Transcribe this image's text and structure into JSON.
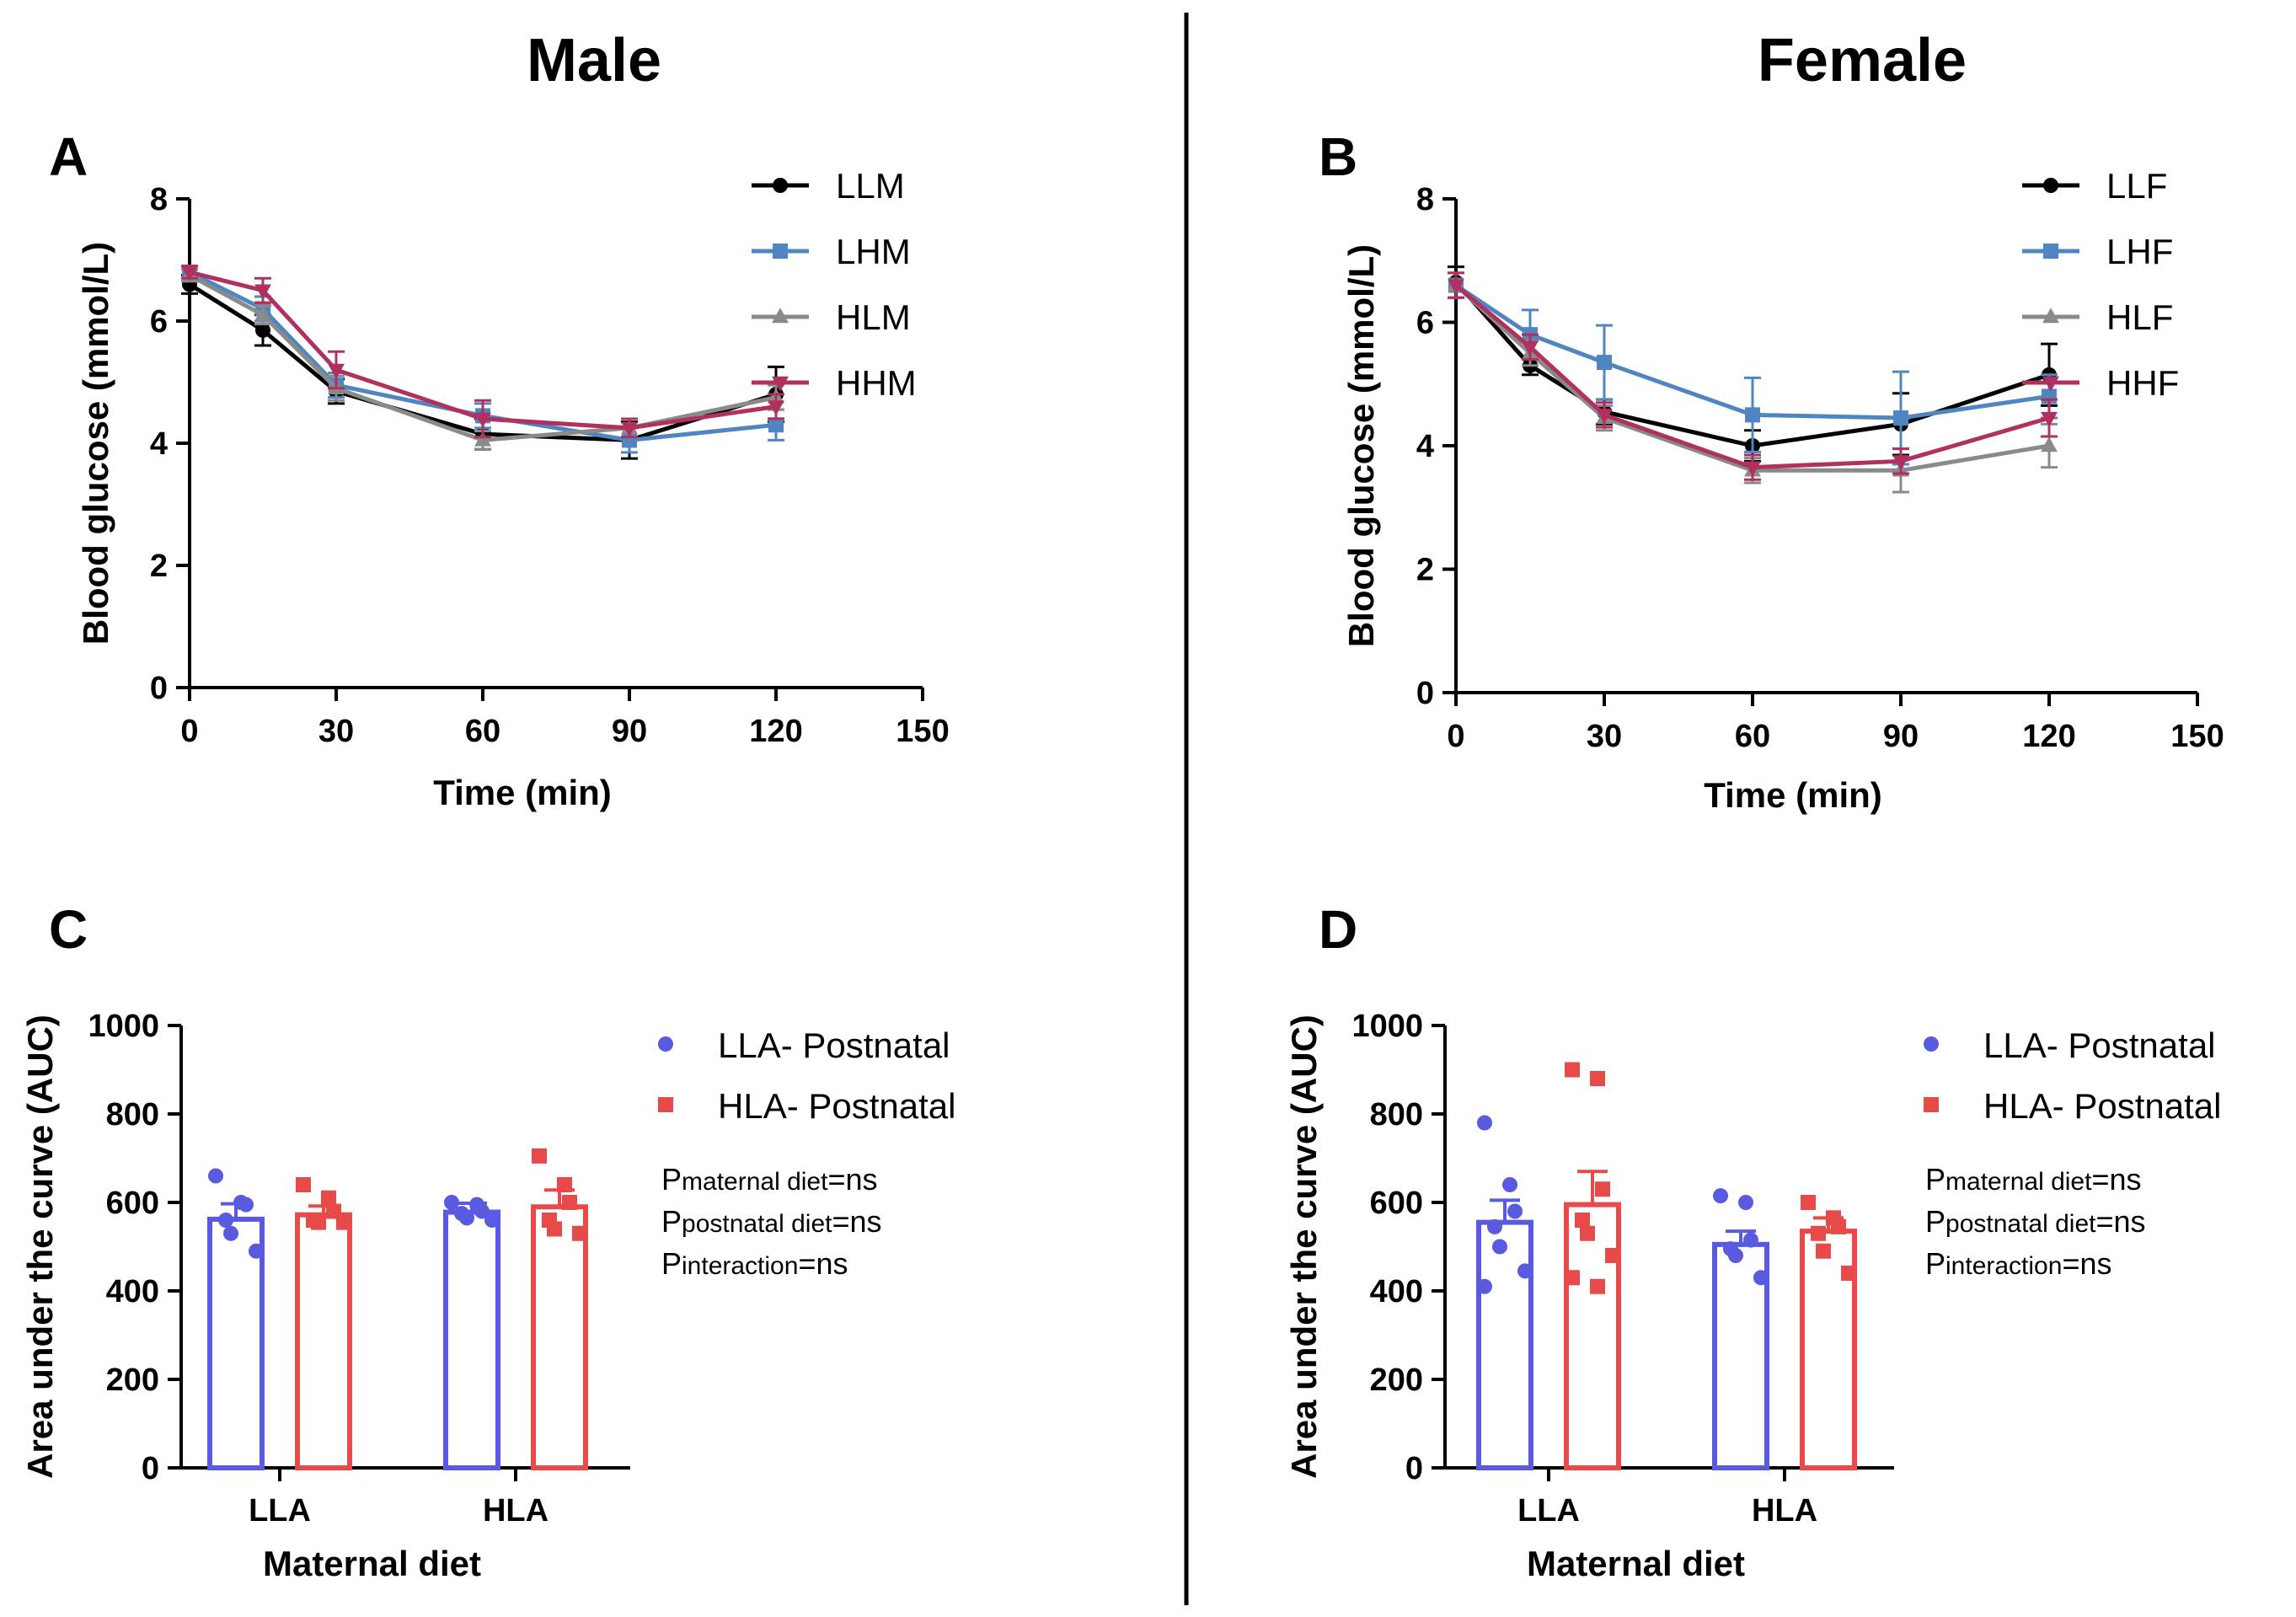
{
  "headers": {
    "male": "Male",
    "female": "Female"
  },
  "panel_labels": {
    "a": "A",
    "b": "B",
    "c": "C",
    "d": "D"
  },
  "colors": {
    "black": "#000000",
    "steel_blue": "#4f86c1",
    "gray": "#8a8a8a",
    "crimson": "#b03060",
    "bar_blue": "#5a5ae0",
    "bar_red": "#e84a4a"
  },
  "chart_data": [
    {
      "id": "A",
      "type": "line",
      "title": "",
      "xlabel": "Time (min)",
      "ylabel": "Blood glucose (mmol/L)",
      "xlim": [
        0,
        150
      ],
      "ylim": [
        0,
        8
      ],
      "xticks": [
        "0",
        "30",
        "60",
        "90",
        "120",
        "150"
      ],
      "yticks": [
        "0",
        "2",
        "4",
        "6",
        "8"
      ],
      "x": [
        0,
        15,
        30,
        60,
        90,
        120
      ],
      "series": [
        {
          "name": "LLM",
          "color": "#000000",
          "marker": "circle",
          "values": [
            6.6,
            5.85,
            4.85,
            4.15,
            4.05,
            4.8
          ],
          "errors": [
            0.15,
            0.25,
            0.2,
            0.25,
            0.3,
            0.45
          ]
        },
        {
          "name": "LHM",
          "color": "#4f86c1",
          "marker": "square",
          "values": [
            6.8,
            6.2,
            4.95,
            4.45,
            4.05,
            4.3
          ],
          "errors": [
            0.1,
            0.2,
            0.2,
            0.2,
            0.2,
            0.25
          ]
        },
        {
          "name": "HLM",
          "color": "#8a8a8a",
          "marker": "triangle-up",
          "values": [
            6.75,
            6.1,
            4.9,
            4.05,
            4.25,
            4.75
          ],
          "errors": [
            0.1,
            0.15,
            0.2,
            0.15,
            0.15,
            0.2
          ]
        },
        {
          "name": "HHM",
          "color": "#b03060",
          "marker": "triangle-down",
          "values": [
            6.8,
            6.5,
            5.2,
            4.4,
            4.25,
            4.6
          ],
          "errors": [
            0.1,
            0.2,
            0.3,
            0.3,
            0.15,
            0.2
          ]
        }
      ]
    },
    {
      "id": "B",
      "type": "line",
      "title": "",
      "xlabel": "Time (min)",
      "ylabel": "Blood glucose (mmol/L)",
      "xlim": [
        0,
        150
      ],
      "ylim": [
        0,
        8
      ],
      "xticks": [
        "0",
        "30",
        "60",
        "90",
        "120",
        "150"
      ],
      "yticks": [
        "0",
        "2",
        "4",
        "6",
        "8"
      ],
      "x": [
        0,
        15,
        30,
        60,
        90,
        120
      ],
      "series": [
        {
          "name": "LLF",
          "color": "#000000",
          "marker": "circle",
          "values": [
            6.65,
            5.3,
            4.55,
            4.0,
            4.35,
            5.15
          ],
          "errors": [
            0.25,
            0.15,
            0.2,
            0.25,
            0.5,
            0.5
          ]
        },
        {
          "name": "LHF",
          "color": "#4f86c1",
          "marker": "square",
          "values": [
            6.6,
            5.8,
            5.35,
            4.5,
            4.45,
            4.8
          ],
          "errors": [
            0.2,
            0.4,
            0.6,
            0.6,
            0.75,
            0.35
          ]
        },
        {
          "name": "HLF",
          "color": "#8a8a8a",
          "marker": "triangle-up",
          "values": [
            6.6,
            5.5,
            4.45,
            3.6,
            3.6,
            4.0
          ],
          "errors": [
            0.2,
            0.2,
            0.2,
            0.2,
            0.35,
            0.35
          ]
        },
        {
          "name": "HHF",
          "color": "#b03060",
          "marker": "triangle-down",
          "values": [
            6.6,
            5.6,
            4.5,
            3.65,
            3.75,
            4.45
          ],
          "errors": [
            0.2,
            0.2,
            0.2,
            0.2,
            0.2,
            0.3
          ]
        }
      ]
    },
    {
      "id": "C",
      "type": "bar",
      "xlabel": "Maternal diet",
      "ylabel": "Area under the curve (AUC)",
      "ylim": [
        0,
        1000
      ],
      "yticks": [
        "0",
        "200",
        "400",
        "600",
        "800",
        "1000"
      ],
      "categories": [
        "LLA",
        "HLA"
      ],
      "series": [
        {
          "name": "LLA- Postnatal",
          "color": "#5a5ae0",
          "marker": "circle",
          "values": [
            562,
            578
          ],
          "errors": [
            35,
            20
          ],
          "points": [
            [
              660,
              600,
              595,
              560,
              530,
              490
            ],
            [
              600,
              595,
              580,
              575,
              565,
              560
            ]
          ]
        },
        {
          "name": "HLA- Postnatal",
          "color": "#e84a4a",
          "marker": "square",
          "values": [
            572,
            590
          ],
          "errors": [
            20,
            38
          ],
          "points": [
            [
              640,
              610,
              580,
              560,
              555,
              555
            ],
            [
              705,
              640,
              600,
              560,
              540,
              530
            ]
          ]
        }
      ],
      "stats": [
        {
          "p": "P",
          "sub": "maternal diet",
          "val": "=ns"
        },
        {
          "p": "P",
          "sub": "postnatal diet",
          "val": "=ns"
        },
        {
          "p": "P",
          "sub": "interaction",
          "val": "=ns"
        }
      ]
    },
    {
      "id": "D",
      "type": "bar",
      "xlabel": "Maternal diet",
      "ylabel": "Area under the curve (AUC)",
      "ylim": [
        0,
        1000
      ],
      "yticks": [
        "0",
        "200",
        "400",
        "600",
        "800",
        "1000"
      ],
      "categories": [
        "LLA",
        "HLA"
      ],
      "series": [
        {
          "name": "LLA- Postnatal",
          "color": "#5a5ae0",
          "marker": "circle",
          "values": [
            555,
            505
          ],
          "errors": [
            50,
            30
          ],
          "points": [
            [
              780,
              640,
              580,
              545,
              500,
              445,
              410
            ],
            [
              615,
              600,
              515,
              495,
              480,
              430
            ]
          ]
        },
        {
          "name": "HLA- Postnatal",
          "color": "#e84a4a",
          "marker": "square",
          "values": [
            595,
            535
          ],
          "errors": [
            75,
            30
          ],
          "points": [
            [
              900,
              880,
              630,
              560,
              530,
              480,
              430,
              410
            ],
            [
              600,
              565,
              545,
              530,
              490,
              440
            ]
          ]
        }
      ],
      "stats": [
        {
          "p": "P",
          "sub": "maternal diet",
          "val": "=ns"
        },
        {
          "p": "P",
          "sub": "postnatal diet",
          "val": "=ns"
        },
        {
          "p": "P",
          "sub": "interaction",
          "val": "=ns"
        }
      ]
    }
  ]
}
